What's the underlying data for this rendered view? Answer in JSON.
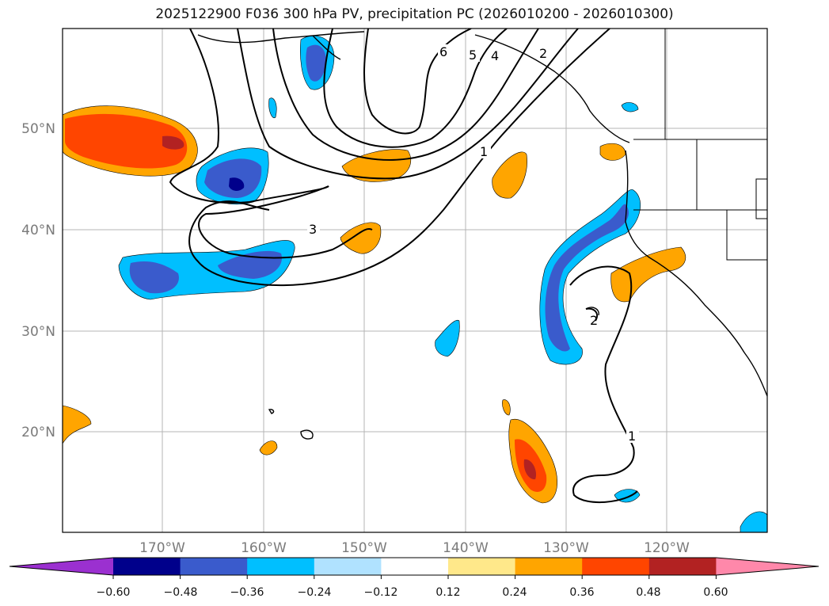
{
  "title": "2025122900 F036 300 hPa PV, precipitation PC (2026010200 - 2026010300)",
  "lat_labels": [
    "50°N",
    "40°N",
    "30°N",
    "20°N"
  ],
  "lon_labels": [
    "170°W",
    "160°W",
    "150°W",
    "140°W",
    "130°W",
    "120°W"
  ],
  "contour_labels": [
    "6",
    "5",
    "4",
    "2",
    "1",
    "3",
    "2",
    "1"
  ],
  "colorbar": {
    "ticks": [
      "−0.60",
      "−0.48",
      "−0.36",
      "−0.24",
      "−0.12",
      "0.12",
      "0.24",
      "0.36",
      "0.48",
      "0.60"
    ],
    "colors": [
      "#9b30d0",
      "#00008b",
      "#3a5bcc",
      "#00bfff",
      "#b0e2ff",
      "#ffffff",
      "#ffe88a",
      "#ffa500",
      "#ff4500",
      "#b22222",
      "#ff88aa"
    ]
  }
}
